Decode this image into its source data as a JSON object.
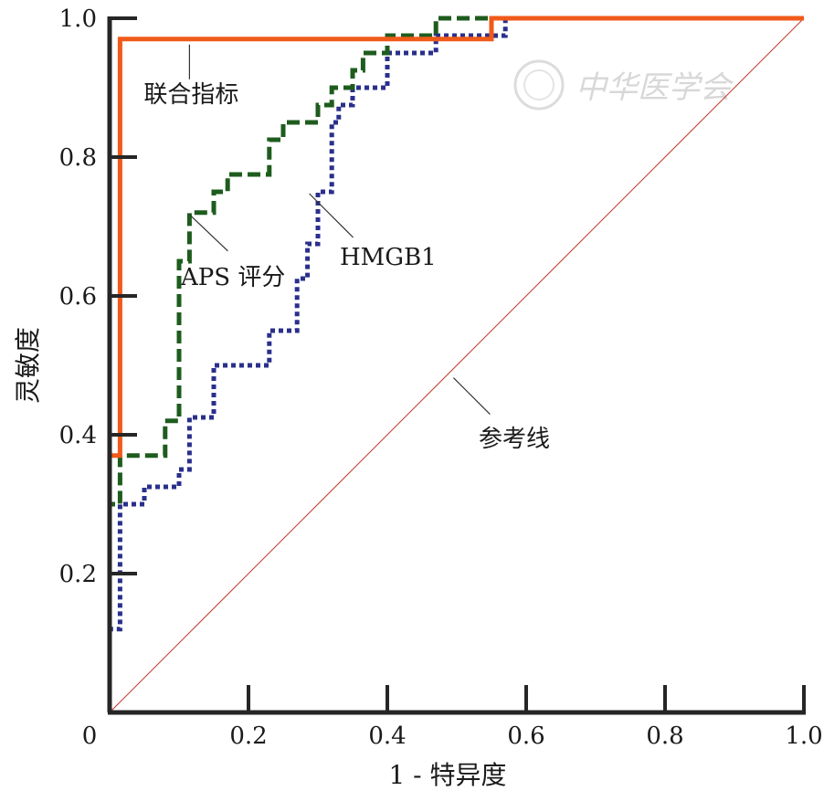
{
  "chart_data": {
    "type": "line",
    "xlabel": "1 - 特异度",
    "ylabel": "灵敏度",
    "xlim": [
      0,
      1
    ],
    "ylim": [
      0,
      1
    ],
    "x_ticks": [
      0,
      0.2,
      0.4,
      0.6,
      0.8,
      1.0
    ],
    "x_tick_labels": [
      "0",
      "0.2",
      "0.4",
      "0.6",
      "0.8",
      "1.0"
    ],
    "y_ticks": [
      0.2,
      0.4,
      0.6,
      0.8,
      1.0
    ],
    "y_tick_labels": [
      "0.2",
      "0.4",
      "0.6",
      "0.8",
      "1.0"
    ],
    "grid": false,
    "series": [
      {
        "name": "联合指标",
        "color": "#f05a1a",
        "style": "solid",
        "x": [
          0,
          0,
          0.015,
          0.015,
          0.55,
          0.55,
          1.0
        ],
        "y": [
          0,
          0.37,
          0.37,
          0.97,
          0.97,
          1.0,
          1.0
        ]
      },
      {
        "name": "APS 评分",
        "color": "#1e5c1e",
        "style": "dashed",
        "x": [
          0,
          0,
          0.015,
          0.015,
          0.08,
          0.08,
          0.1,
          0.1,
          0.115,
          0.115,
          0.15,
          0.15,
          0.17,
          0.17,
          0.23,
          0.23,
          0.25,
          0.25,
          0.3,
          0.3,
          0.32,
          0.32,
          0.35,
          0.35,
          0.365,
          0.365,
          0.4,
          0.4,
          0.47,
          0.47,
          1.0
        ],
        "y": [
          0,
          0.3,
          0.3,
          0.37,
          0.37,
          0.42,
          0.42,
          0.65,
          0.65,
          0.72,
          0.72,
          0.75,
          0.75,
          0.775,
          0.775,
          0.825,
          0.825,
          0.85,
          0.85,
          0.875,
          0.875,
          0.9,
          0.9,
          0.925,
          0.925,
          0.95,
          0.95,
          0.975,
          0.975,
          1.0,
          1.0
        ]
      },
      {
        "name": "HMGB1",
        "color": "#2a2f8c",
        "style": "dotted",
        "x": [
          0,
          0,
          0.015,
          0.015,
          0.05,
          0.05,
          0.1,
          0.1,
          0.115,
          0.115,
          0.15,
          0.15,
          0.23,
          0.23,
          0.27,
          0.27,
          0.285,
          0.285,
          0.3,
          0.3,
          0.32,
          0.32,
          0.33,
          0.33,
          0.35,
          0.35,
          0.4,
          0.4,
          0.47,
          0.47,
          0.57,
          0.57,
          0.775,
          0.775,
          1.0
        ],
        "y": [
          0,
          0.12,
          0.12,
          0.3,
          0.3,
          0.325,
          0.325,
          0.35,
          0.35,
          0.425,
          0.425,
          0.5,
          0.5,
          0.55,
          0.55,
          0.625,
          0.625,
          0.675,
          0.675,
          0.75,
          0.75,
          0.85,
          0.85,
          0.875,
          0.875,
          0.9,
          0.9,
          0.95,
          0.95,
          0.975,
          0.975,
          1.0,
          1.0,
          1.0,
          1.0
        ]
      },
      {
        "name": "参考线",
        "color": "#c0392b",
        "style": "thin",
        "x": [
          0,
          1
        ],
        "y": [
          0,
          1
        ]
      }
    ],
    "annotations": [
      {
        "text": "联合指标",
        "series": 0,
        "point_x": 0.115,
        "point_y": 0.97
      },
      {
        "text": "APS 评分",
        "series": 1,
        "point_x": 0.115,
        "point_y": 0.72
      },
      {
        "text": "HMGB1",
        "series": 2,
        "point_x": 0.285,
        "point_y": 0.75
      },
      {
        "text": "参考线",
        "series": 3,
        "point_x": 0.49,
        "point_y": 0.49
      }
    ]
  },
  "watermark": "中华医学会"
}
